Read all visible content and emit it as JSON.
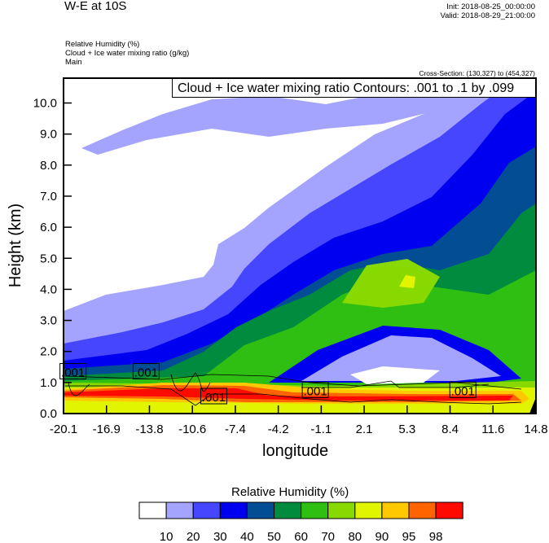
{
  "header": {
    "title": "W-E at 10S",
    "init": "Init: 2018-08-25_00:00:00",
    "valid": "Valid: 2018-08-29_21:00:00",
    "fields": [
      "Relative Humidity   (%)",
      "Cloud + Ice water mixing ratio   (g/kg)",
      "Main"
    ],
    "cross_section": "Cross-Section: (130,327) to (454,327)"
  },
  "chart_data": {
    "type": "heatmap",
    "title": "W-E at 10S",
    "xlabel": "longitude",
    "ylabel": "Height (km)",
    "xlim": [
      -20.1,
      14.8
    ],
    "ylim": [
      0,
      10.8
    ],
    "xticks": [
      "-20.1",
      "-16.9",
      "-13.8",
      "-10.6",
      "-7.4",
      "-4.2",
      "-1.1",
      "2.1",
      "5.3",
      "8.4",
      "11.6",
      "14.8"
    ],
    "yticks": [
      "0.0",
      "1.0",
      "2.0",
      "3.0",
      "4.0",
      "5.0",
      "6.0",
      "7.0",
      "8.0",
      "9.0",
      "10.0"
    ],
    "filled_field": "Relative Humidity (%)",
    "contour_field": "Cloud + Ice water mixing ratio Contours: .001 to .1 by .099",
    "contour_labels": [
      {
        "x": -19.4,
        "y": 1.35,
        "text": ".001"
      },
      {
        "x": -14.0,
        "y": 1.35,
        "text": ".001"
      },
      {
        "x": -9.0,
        "y": 0.55,
        "text": ".001"
      },
      {
        "x": -1.5,
        "y": 0.75,
        "text": ".001"
      },
      {
        "x": 9.4,
        "y": 0.75,
        "text": ".001"
      }
    ],
    "colorbar": {
      "title": "Relative Humidity  (%)",
      "levels": [
        "10",
        "20",
        "30",
        "40",
        "50",
        "60",
        "70",
        "80",
        "90",
        "95",
        "98"
      ],
      "colors": [
        "#ffffff",
        "#a4a4ff",
        "#4646ff",
        "#0000f0",
        "#034d94",
        "#008b3f",
        "#2ebf12",
        "#88d900",
        "#e1f500",
        "#ffc800",
        "#ff6400",
        "#ff0a00"
      ]
    }
  }
}
